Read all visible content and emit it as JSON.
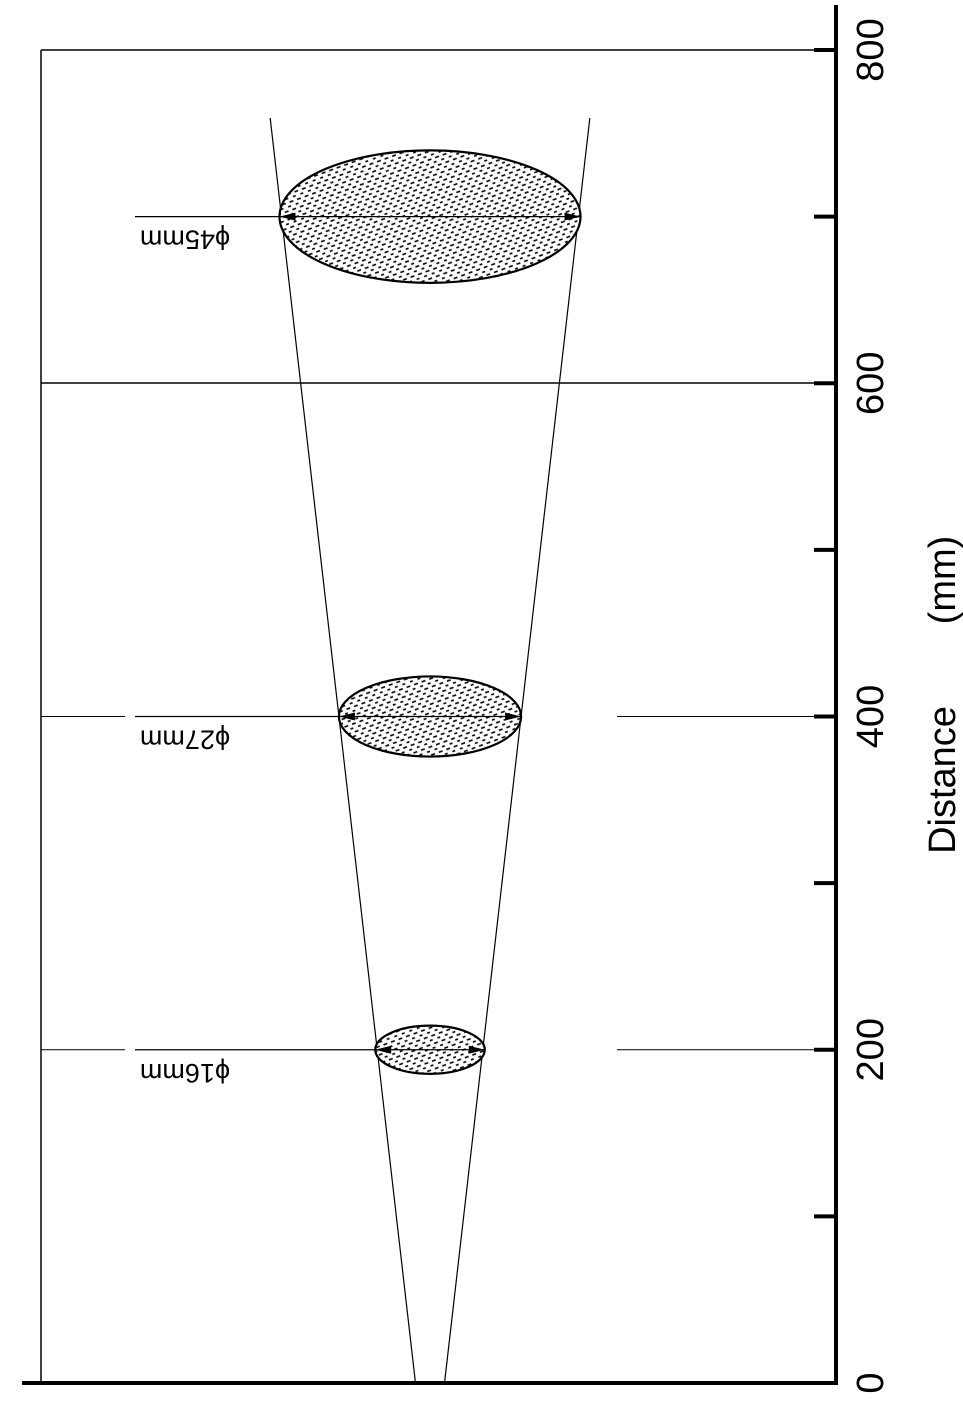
{
  "chart_data": {
    "type": "diagram",
    "axis": {
      "title": "Distance",
      "unit": "(mm)",
      "range": [
        0,
        800
      ],
      "major_ticks": [
        0,
        200,
        400,
        600,
        800
      ],
      "minor_ticks": [
        100,
        300,
        500,
        700
      ],
      "tick_labels": [
        "0",
        "200",
        "400",
        "600",
        "800"
      ]
    },
    "beam_spots": [
      {
        "distance": 200,
        "diameter_mm": 16,
        "label": "ϕ16mm"
      },
      {
        "distance": 400,
        "diameter_mm": 27,
        "label": "ϕ27mm"
      },
      {
        "distance": 700,
        "diameter_mm": 45,
        "label": "ϕ45mm"
      }
    ],
    "cone": {
      "origin_width_mm": 4
    }
  }
}
